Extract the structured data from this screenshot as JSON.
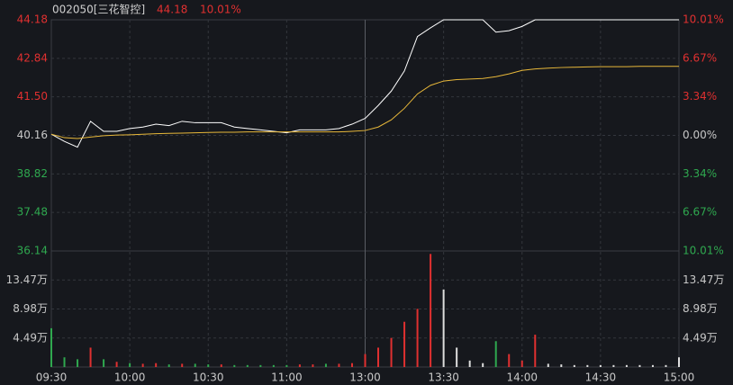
{
  "chart_data": [
    {
      "type": "line",
      "title": "002050[三花智控]",
      "last_price": 44.18,
      "change_percent": "10.01%",
      "x": [
        0,
        5,
        10,
        15,
        20,
        25,
        30,
        35,
        40,
        45,
        50,
        55,
        60,
        65,
        70,
        75,
        80,
        85,
        90,
        95,
        100,
        105,
        110,
        115,
        120,
        125,
        130,
        135,
        140,
        145,
        150,
        155,
        160,
        165,
        170,
        175,
        180,
        185,
        190,
        195,
        200,
        205,
        210,
        215,
        220,
        225,
        230,
        235,
        240
      ],
      "series": [
        {
          "color": "#ffffff",
          "values": [
            40.2,
            39.95,
            39.75,
            40.65,
            40.3,
            40.3,
            40.4,
            40.45,
            40.55,
            40.5,
            40.65,
            40.6,
            40.6,
            40.6,
            40.45,
            40.4,
            40.35,
            40.3,
            40.25,
            40.35,
            40.35,
            40.35,
            40.4,
            40.55,
            40.75,
            41.2,
            41.7,
            42.4,
            43.6,
            43.9,
            44.18,
            44.18,
            44.18,
            44.18,
            43.75,
            43.8,
            43.95,
            44.18,
            44.18,
            44.18,
            44.18,
            44.18,
            44.18,
            44.18,
            44.18,
            44.18,
            44.18,
            44.18,
            44.18
          ]
        },
        {
          "color": "#e8b83a",
          "values": [
            40.2,
            40.08,
            40.05,
            40.1,
            40.15,
            40.17,
            40.18,
            40.2,
            40.22,
            40.23,
            40.24,
            40.25,
            40.26,
            40.27,
            40.27,
            40.28,
            40.28,
            40.28,
            40.28,
            40.28,
            40.28,
            40.28,
            40.28,
            40.3,
            40.33,
            40.45,
            40.7,
            41.1,
            41.6,
            41.9,
            42.05,
            42.1,
            42.12,
            42.14,
            42.2,
            42.3,
            42.42,
            42.47,
            42.5,
            42.52,
            42.53,
            42.54,
            42.55,
            42.55,
            42.55,
            42.56,
            42.56,
            42.56,
            42.56
          ]
        }
      ],
      "xlim": [
        0,
        240
      ],
      "xticks": [
        {
          "value": 0,
          "label": "09:30"
        },
        {
          "value": 30,
          "label": "10:00"
        },
        {
          "value": 60,
          "label": "10:30"
        },
        {
          "value": 90,
          "label": "11:00"
        },
        {
          "value": 120,
          "label": "13:00"
        },
        {
          "value": 150,
          "label": "13:30"
        },
        {
          "value": 180,
          "label": "14:00"
        },
        {
          "value": 210,
          "label": "14:30"
        },
        {
          "value": 240,
          "label": "15:00"
        }
      ],
      "ylim": [
        36.14,
        44.18
      ],
      "yticks": [
        44.18,
        42.84,
        {
          "value": 41.5,
          "label": "41.50"
        },
        40.16,
        38.82,
        37.48,
        36.14
      ],
      "y2lim": [
        -10.01,
        10.01
      ],
      "y2ticks": [
        {
          "value": 10.01,
          "label": "10.01%"
        },
        {
          "value": 6.67,
          "label": "6.67%"
        },
        {
          "value": 3.34,
          "label": "3.34%"
        },
        {
          "value": 0,
          "label": "0.00%"
        },
        {
          "value": -3.34,
          "label": "3.34%"
        },
        {
          "value": -6.67,
          "label": "6.67%"
        },
        {
          "value": -10.01,
          "label": "10.01%"
        }
      ],
      "grid": true
    },
    {
      "type": "bar",
      "values": [
        6,
        1.5,
        1.2,
        3,
        1.2,
        0.8,
        0.6,
        0.5,
        0.6,
        0.4,
        0.5,
        0.5,
        0.4,
        0.4,
        0.3,
        0.3,
        0.3,
        0.3,
        0.3,
        0.4,
        0.4,
        0.5,
        0.5,
        0.6,
        2,
        3,
        4.5,
        7,
        9,
        17.5,
        12,
        3,
        1,
        0.6,
        4,
        2,
        1,
        5,
        0.5,
        0.4,
        0.3,
        0.3,
        0.3,
        0.3,
        0.3,
        0.3,
        0.3,
        0.3,
        1.5
      ],
      "colors": [
        "#2fa84f",
        "#2fa84f",
        "#2fa84f",
        "#e03030",
        "#2fa84f",
        "#e03030",
        "#2fa84f",
        "#e03030",
        "#e03030",
        "#2fa84f",
        "#e03030",
        "#2fa84f",
        "#2fa84f",
        "#e03030",
        "#2fa84f",
        "#2fa84f",
        "#2fa84f",
        "#2fa84f",
        "#2fa84f",
        "#e03030",
        "#e03030",
        "#2fa84f",
        "#e03030",
        "#e03030",
        "#e03030",
        "#e03030",
        "#e03030",
        "#e03030",
        "#e03030",
        "#e03030",
        "#dddddd",
        "#dddddd",
        "#dddddd",
        "#dddddd",
        "#2fa84f",
        "#e03030",
        "#e03030",
        "#e03030",
        "#dddddd",
        "#dddddd",
        "#dddddd",
        "#dddddd",
        "#dddddd",
        "#dddddd",
        "#dddddd",
        "#dddddd",
        "#dddddd",
        "#dddddd",
        "#dddddd"
      ],
      "ylim": [
        0,
        17.96
      ],
      "yticks": [
        {
          "value": 13.47,
          "label": "13.47万"
        },
        {
          "value": 8.98,
          "label": "8.98万"
        },
        {
          "value": 4.49,
          "label": "4.49万"
        }
      ]
    }
  ]
}
